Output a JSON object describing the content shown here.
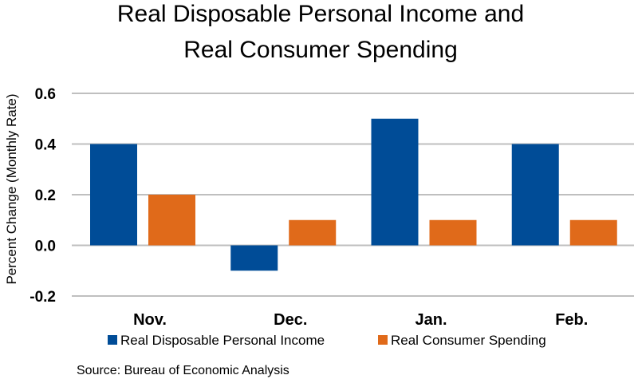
{
  "chart_data": {
    "type": "bar",
    "title_lines": [
      "Real Disposable Personal Income and",
      "Real Consumer Spending"
    ],
    "ylabel": "Percent Change (Monthly Rate)",
    "xlabel": "",
    "categories": [
      "Nov.",
      "Dec.",
      "Jan.",
      "Feb."
    ],
    "series": [
      {
        "name": "Real Disposable Personal Income",
        "color": "#004C97",
        "values": [
          0.4,
          -0.1,
          0.5,
          0.4
        ]
      },
      {
        "name": "Real Consumer Spending",
        "color": "#E06A1A",
        "values": [
          0.2,
          0.1,
          0.1,
          0.1
        ]
      }
    ],
    "ylim": [
      -0.2,
      0.6
    ],
    "yticks": [
      "-0.2",
      "0.0",
      "0.2",
      "0.4",
      "0.6"
    ],
    "grid": true,
    "legend_position": "bottom",
    "source": "Source:  Bureau of Economic Analysis"
  }
}
